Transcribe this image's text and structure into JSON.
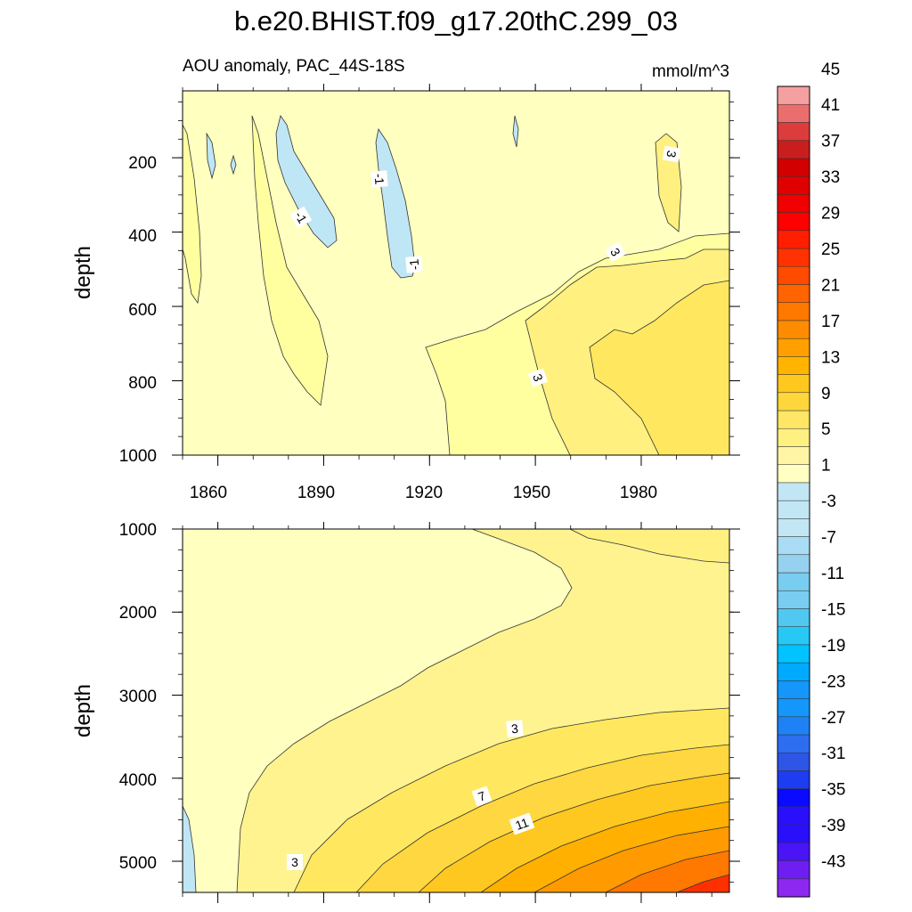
{
  "chart_data": {
    "type": "heatmap",
    "title": "b.e20.BHIST.f09_g17.20thC.299_03",
    "subtitle_left": "AOU anomaly, PAC_44S-18S",
    "subtitle_right": "mmol/m^3",
    "colorbar": {
      "levels": [
        -45,
        -43,
        -41,
        -39,
        -37,
        -35,
        -33,
        -31,
        -29,
        -27,
        -25,
        -23,
        -21,
        -19,
        -17,
        -15,
        -13,
        -11,
        -9,
        -7,
        -5,
        -3,
        -1,
        1,
        3,
        5,
        7,
        9,
        11,
        13,
        15,
        17,
        19,
        21,
        23,
        25,
        27,
        29,
        31,
        33,
        35,
        37,
        39,
        41,
        43,
        45
      ],
      "tick_labels": [
        "-43",
        "-39",
        "-35",
        "-31",
        "-27",
        "-23",
        "-19",
        "-15",
        "-11",
        "-7",
        "-3",
        "1",
        "5",
        "9",
        "13",
        "17",
        "21",
        "25",
        "29",
        "33",
        "37",
        "41",
        "45"
      ]
    },
    "panels": [
      {
        "name": "upper",
        "ylabel": "depth",
        "xlim": [
          1850,
          2005
        ],
        "ylim": [
          1000,
          20
        ],
        "x_ticks": [
          1860,
          1890,
          1920,
          1950,
          1980
        ],
        "x_tick_labels": [
          "1860",
          "1890",
          "1920",
          "1950",
          "1980"
        ],
        "y_ticks": [
          200,
          400,
          600,
          800,
          1000
        ],
        "y_tick_labels": [
          "200",
          "400",
          "600",
          "800",
          "1000"
        ],
        "contour_labels": [
          {
            "text": "-1",
            "x": 1906,
            "y": 255,
            "angle": 85
          },
          {
            "text": "-1",
            "x": 1883,
            "y": 365,
            "angle": 60
          },
          {
            "text": "-1",
            "x": 1917,
            "y": 495,
            "angle": -95
          },
          {
            "text": "3",
            "x": 1987,
            "y": 180,
            "angle": 100
          },
          {
            "text": "3",
            "x": 1972,
            "y": 455,
            "angle": 60
          },
          {
            "text": "3",
            "x": 1952,
            "y": 800,
            "angle": 70
          }
        ]
      },
      {
        "name": "lower",
        "ylabel": "depth",
        "xlim": [
          1850,
          2005
        ],
        "ylim": [
          5375,
          1000
        ],
        "y_ticks": [
          1000,
          2000,
          3000,
          4000,
          5000
        ],
        "y_tick_labels": [
          "1000",
          "2000",
          "3000",
          "4000",
          "5000"
        ],
        "contour_labels": [
          {
            "text": "3",
            "x": 1943,
            "y": 3400,
            "angle": -5
          },
          {
            "text": "7",
            "x": 1935,
            "y": 4220,
            "angle": -20
          },
          {
            "text": "11",
            "x": 1945,
            "y": 4520,
            "angle": -20
          },
          {
            "text": "3",
            "x": 1881,
            "y": 5000,
            "angle": 0
          }
        ]
      }
    ]
  }
}
